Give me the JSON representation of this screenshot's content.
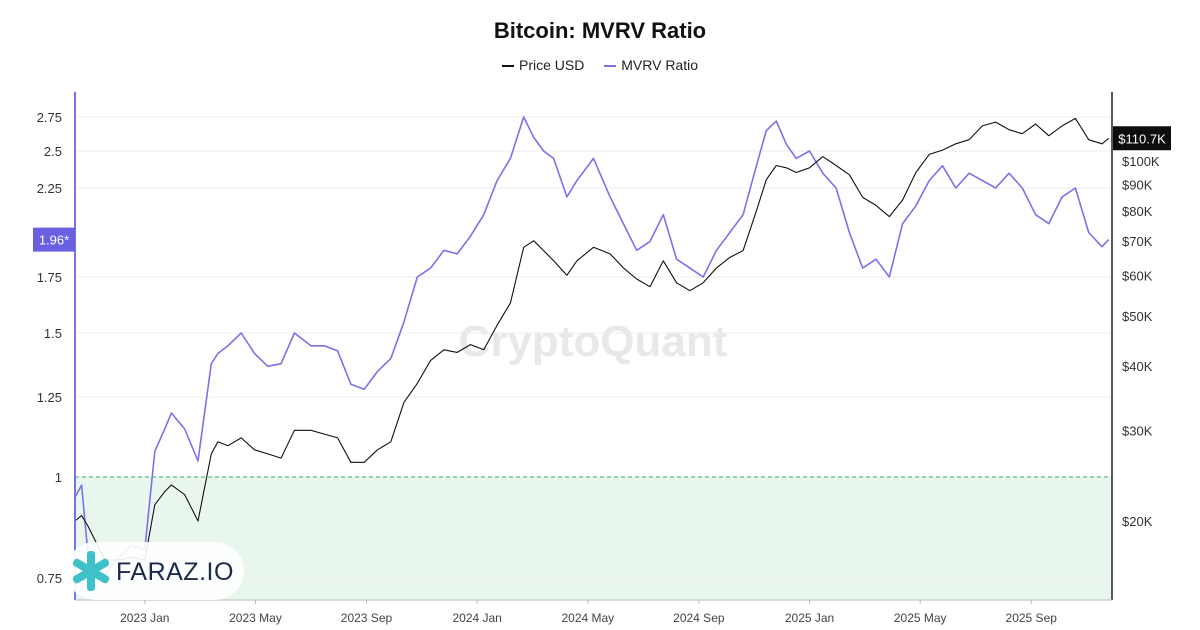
{
  "chart_data": {
    "type": "line",
    "title": "Bitcoin: MVRV Ratio",
    "watermark": "CryptoQuant",
    "legend": [
      {
        "name": "Price USD",
        "color": "#111111"
      },
      {
        "name": "MVRV Ratio",
        "color": "#7b72e6"
      }
    ],
    "x_ticks": [
      "2023 Jan",
      "2023 May",
      "2023 Sep",
      "2024 Jan",
      "2024 May",
      "2024 Sep",
      "2025 Jan",
      "2025 May",
      "2025 Sep"
    ],
    "x_tick_dates": [
      2023.0,
      2023.333,
      2023.667,
      2024.0,
      2024.333,
      2024.667,
      2025.0,
      2025.333,
      2025.667
    ],
    "x_range": [
      2022.79,
      2025.91
    ],
    "left_axis": {
      "name": "MVRV Ratio",
      "ticks": [
        0.75,
        1,
        1.25,
        1.5,
        1.75,
        2.25,
        2.5,
        2.75
      ],
      "tick_labels": [
        "0.75",
        "1",
        "1.25",
        "1.5",
        "1.75",
        "2.25",
        "2.5",
        "2.75"
      ],
      "current_value_label": "1.96*",
      "current_value": 1.96
    },
    "right_axis": {
      "name": "Price USD",
      "scale": "log",
      "ticks": [
        20000,
        30000,
        40000,
        50000,
        60000,
        70000,
        80000,
        90000,
        100000
      ],
      "tick_labels": [
        "$20K",
        "$30K",
        "$40K",
        "$50K",
        "$60K",
        "$70K",
        "$80K",
        "$90K",
        "$100K"
      ],
      "current_value_label": "$110.7K",
      "current_value": 110700
    },
    "reference_line": {
      "value": 1,
      "style": "dashed",
      "color": "#3cae5a"
    },
    "shaded_region": {
      "from": 0.72,
      "to": 1,
      "color": "#e9f6ee"
    },
    "series": [
      {
        "name": "MVRV Ratio",
        "axis": "left",
        "color": "#7b72e6",
        "x": [
          2022.79,
          2022.81,
          2022.83,
          2022.88,
          2022.92,
          2022.96,
          2023.0,
          2023.03,
          2023.06,
          2023.08,
          2023.12,
          2023.16,
          2023.2,
          2023.22,
          2023.25,
          2023.29,
          2023.33,
          2023.37,
          2023.41,
          2023.45,
          2023.5,
          2023.54,
          2023.58,
          2023.62,
          2023.66,
          2023.7,
          2023.74,
          2023.78,
          2023.82,
          2023.86,
          2023.9,
          2023.94,
          2023.98,
          2024.02,
          2024.06,
          2024.1,
          2024.14,
          2024.17,
          2024.2,
          2024.23,
          2024.27,
          2024.3,
          2024.35,
          2024.4,
          2024.44,
          2024.48,
          2024.52,
          2024.56,
          2024.6,
          2024.64,
          2024.68,
          2024.72,
          2024.76,
          2024.8,
          2024.84,
          2024.87,
          2024.9,
          2024.93,
          2024.96,
          2025.0,
          2025.04,
          2025.08,
          2025.12,
          2025.16,
          2025.2,
          2025.24,
          2025.28,
          2025.32,
          2025.36,
          2025.4,
          2025.44,
          2025.48,
          2025.52,
          2025.56,
          2025.6,
          2025.64,
          2025.68,
          2025.72,
          2025.76,
          2025.8,
          2025.84,
          2025.88,
          2025.9
        ],
        "values": [
          0.95,
          0.98,
          0.8,
          0.76,
          0.8,
          0.83,
          0.82,
          1.08,
          1.15,
          1.2,
          1.15,
          1.05,
          1.38,
          1.42,
          1.45,
          1.5,
          1.42,
          1.37,
          1.38,
          1.5,
          1.45,
          1.45,
          1.43,
          1.3,
          1.28,
          1.35,
          1.4,
          1.55,
          1.75,
          1.8,
          1.9,
          1.88,
          1.98,
          2.1,
          2.3,
          2.45,
          2.75,
          2.6,
          2.5,
          2.45,
          2.2,
          2.3,
          2.45,
          2.2,
          2.05,
          1.9,
          1.95,
          2.1,
          1.85,
          1.8,
          1.75,
          1.9,
          2.0,
          2.1,
          2.4,
          2.65,
          2.72,
          2.55,
          2.45,
          2.5,
          2.35,
          2.25,
          2.0,
          1.8,
          1.85,
          1.75,
          2.05,
          2.15,
          2.3,
          2.4,
          2.25,
          2.35,
          2.3,
          2.25,
          2.35,
          2.25,
          2.1,
          2.05,
          2.2,
          2.25,
          2.0,
          1.92,
          1.96
        ]
      },
      {
        "name": "Price USD",
        "axis": "right",
        "color": "#111111",
        "x": [
          2022.79,
          2022.81,
          2022.83,
          2022.88,
          2022.92,
          2022.96,
          2023.0,
          2023.03,
          2023.06,
          2023.08,
          2023.12,
          2023.16,
          2023.2,
          2023.22,
          2023.25,
          2023.29,
          2023.33,
          2023.37,
          2023.41,
          2023.45,
          2023.5,
          2023.54,
          2023.58,
          2023.62,
          2023.66,
          2023.7,
          2023.74,
          2023.78,
          2023.82,
          2023.86,
          2023.9,
          2023.94,
          2023.98,
          2024.02,
          2024.06,
          2024.1,
          2024.14,
          2024.17,
          2024.2,
          2024.23,
          2024.27,
          2024.3,
          2024.35,
          2024.4,
          2024.44,
          2024.48,
          2024.52,
          2024.56,
          2024.6,
          2024.64,
          2024.68,
          2024.72,
          2024.76,
          2024.8,
          2024.84,
          2024.87,
          2024.9,
          2024.93,
          2024.96,
          2025.0,
          2025.04,
          2025.08,
          2025.12,
          2025.16,
          2025.2,
          2025.24,
          2025.28,
          2025.32,
          2025.36,
          2025.4,
          2025.44,
          2025.48,
          2025.52,
          2025.56,
          2025.6,
          2025.64,
          2025.68,
          2025.72,
          2025.76,
          2025.8,
          2025.84,
          2025.88,
          2025.9
        ],
        "values": [
          20000,
          20500,
          19500,
          16800,
          16800,
          17000,
          16800,
          21500,
          22800,
          23500,
          22500,
          20000,
          27000,
          28500,
          28000,
          29000,
          27500,
          27000,
          26500,
          30000,
          30000,
          29500,
          29000,
          26000,
          26000,
          27500,
          28500,
          34000,
          37000,
          41000,
          43000,
          42500,
          44000,
          43000,
          48000,
          53000,
          68000,
          70000,
          67000,
          64000,
          60000,
          64000,
          68000,
          66000,
          62000,
          59000,
          57000,
          64000,
          58000,
          56000,
          58000,
          62000,
          65000,
          67000,
          80000,
          92000,
          98000,
          97000,
          95000,
          97000,
          102000,
          98000,
          94000,
          85000,
          82000,
          78000,
          84000,
          95000,
          103000,
          105000,
          108000,
          110000,
          117000,
          119000,
          115000,
          113000,
          118000,
          112000,
          117000,
          121000,
          110000,
          108000,
          110700
        ]
      }
    ]
  },
  "brand": {
    "name": "FARAZ.IO"
  }
}
